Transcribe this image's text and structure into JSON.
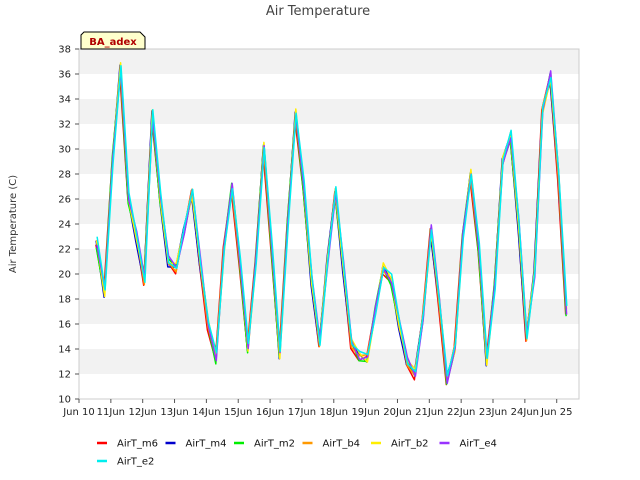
{
  "chart_data": {
    "type": "line",
    "title": "Air Temperature",
    "ylabel": "Air Temperature (C)",
    "xlabel": "",
    "badge": "BA_adex",
    "ylim": [
      10,
      38
    ],
    "xlim": [
      9,
      24.7
    ],
    "yticks": [
      10,
      12,
      14,
      16,
      18,
      20,
      22,
      24,
      26,
      28,
      30,
      32,
      34,
      36,
      38
    ],
    "xticks": [
      {
        "v": 9,
        "label": "Jun 10"
      },
      {
        "v": 10,
        "label": "11Jun"
      },
      {
        "v": 11,
        "label": "12Jun"
      },
      {
        "v": 12,
        "label": "13Jun"
      },
      {
        "v": 13,
        "label": "14Jun"
      },
      {
        "v": 14,
        "label": "15Jun"
      },
      {
        "v": 15,
        "label": "16Jun"
      },
      {
        "v": 16,
        "label": "17Jun"
      },
      {
        "v": 17,
        "label": "18Jun"
      },
      {
        "v": 18,
        "label": "19Jun"
      },
      {
        "v": 19,
        "label": "20Jun"
      },
      {
        "v": 20,
        "label": "21Jun"
      },
      {
        "v": 21,
        "label": "22Jun"
      },
      {
        "v": 22,
        "label": "23Jun"
      },
      {
        "v": 23,
        "label": "24Jun"
      },
      {
        "v": 24,
        "label": "Jun 25"
      }
    ],
    "grid": "horizontal bands",
    "legend_position": "bottom",
    "base": {
      "x": [
        9.55,
        9.8,
        10.05,
        10.3,
        10.55,
        10.8,
        11.05,
        11.3,
        11.55,
        11.8,
        12.05,
        12.3,
        12.55,
        12.8,
        13.05,
        13.3,
        13.55,
        13.8,
        14.05,
        14.3,
        14.55,
        14.8,
        15.05,
        15.3,
        15.55,
        15.8,
        16.05,
        16.3,
        16.55,
        16.8,
        17.05,
        17.3,
        17.55,
        17.8,
        18.05,
        18.3,
        18.55,
        18.8,
        19.05,
        19.3,
        19.55,
        19.8,
        20.05,
        20.3,
        20.55,
        20.8,
        21.05,
        21.3,
        21.55,
        21.8,
        22.05,
        22.3,
        22.55,
        22.8,
        23.05,
        23.3,
        23.55,
        23.8,
        24.05,
        24.3
      ],
      "y": [
        22.5,
        18.5,
        29,
        36.5,
        26,
        23,
        19.5,
        32.8,
        26,
        21,
        20.5,
        23.5,
        26.5,
        21,
        16,
        13.2,
        22,
        27,
        21,
        14,
        21,
        30.2,
        22,
        13.5,
        24,
        32.8,
        27,
        19.5,
        14.5,
        21,
        26.5,
        20.5,
        14.5,
        13.4,
        13.2,
        17,
        20.5,
        19.5,
        16,
        13,
        12,
        16.5,
        23.5,
        18,
        11.5,
        14,
        23,
        28,
        22,
        13,
        19,
        29,
        31,
        24,
        15,
        20,
        33,
        35.8,
        28,
        17
      ]
    },
    "series": [
      {
        "name": "AirT_m6",
        "color": "#ff0000"
      },
      {
        "name": "AirT_m4",
        "color": "#0000cc"
      },
      {
        "name": "AirT_m2",
        "color": "#00ee00"
      },
      {
        "name": "AirT_b4",
        "color": "#ff9900"
      },
      {
        "name": "AirT_b2",
        "color": "#ffee00"
      },
      {
        "name": "AirT_e4",
        "color": "#9933ff"
      },
      {
        "name": "AirT_e2",
        "color": "#00eeee"
      }
    ]
  }
}
